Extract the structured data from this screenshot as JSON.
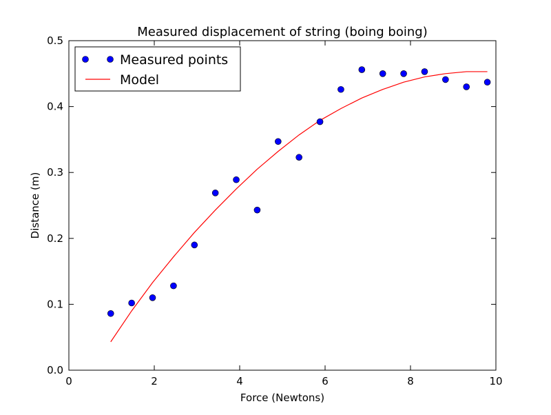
{
  "chart_data": {
    "type": "line",
    "title": "Measured displacement of string (boing boing)",
    "xlabel": "Force (Newtons)",
    "ylabel": "Distance (m)",
    "xlim": [
      0,
      10
    ],
    "ylim": [
      0,
      0.5
    ],
    "xticks": [
      0,
      2,
      4,
      6,
      8,
      10
    ],
    "xtick_labels": [
      "0",
      "2",
      "4",
      "6",
      "8",
      "10"
    ],
    "yticks": [
      0.0,
      0.1,
      0.2,
      0.3,
      0.4,
      0.5
    ],
    "ytick_labels": [
      "0.0",
      "0.1",
      "0.2",
      "0.3",
      "0.4",
      "0.5"
    ],
    "grid": false,
    "legend_position": "top-left",
    "series": [
      {
        "name": "Measured points",
        "kind": "scatter",
        "color": "#0000ff",
        "x": [
          0.98,
          1.47,
          1.96,
          2.45,
          2.94,
          3.43,
          3.92,
          4.41,
          4.9,
          5.39,
          5.88,
          6.37,
          6.86,
          7.35,
          7.84,
          8.33,
          8.82,
          9.31,
          9.8
        ],
        "y": [
          0.086,
          0.102,
          0.11,
          0.128,
          0.19,
          0.269,
          0.289,
          0.243,
          0.347,
          0.323,
          0.377,
          0.426,
          0.456,
          0.45,
          0.45,
          0.453,
          0.441,
          0.43,
          0.437
        ]
      },
      {
        "name": "Model",
        "kind": "line",
        "color": "#ff0000",
        "x": [
          0.98,
          1.47,
          1.96,
          2.45,
          2.94,
          3.43,
          3.92,
          4.41,
          4.9,
          5.39,
          5.88,
          6.37,
          6.86,
          7.35,
          7.84,
          8.33,
          8.82,
          9.31,
          9.8
        ],
        "y": [
          0.043,
          0.09,
          0.133,
          0.172,
          0.209,
          0.243,
          0.275,
          0.305,
          0.332,
          0.357,
          0.379,
          0.397,
          0.413,
          0.426,
          0.437,
          0.445,
          0.45,
          0.453,
          0.453
        ]
      }
    ]
  }
}
